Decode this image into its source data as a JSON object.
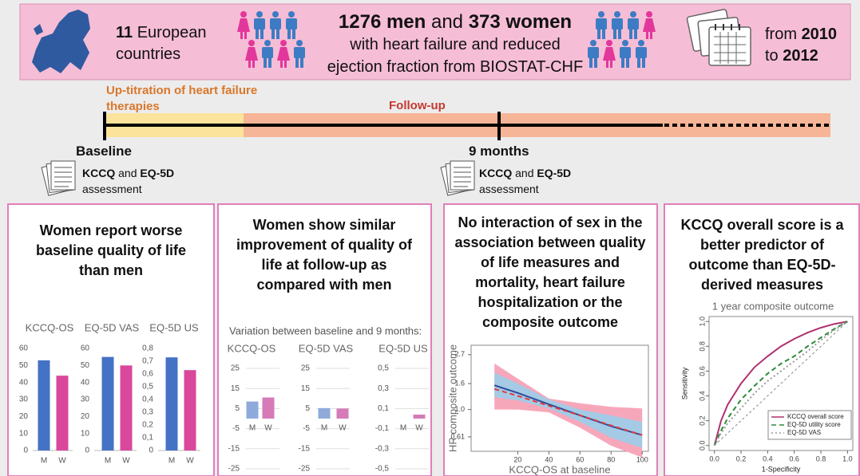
{
  "header": {
    "countries": {
      "number": "11",
      "text": "European countries"
    },
    "population": {
      "men": "1276 men",
      "and": "and",
      "women": "373 women",
      "line2": "with heart failure and reduced",
      "line3": "ejection fraction from BIOSTAT-CHF"
    },
    "period": {
      "from": "from",
      "start": "2010",
      "to": "to",
      "end": "2012"
    }
  },
  "timeline": {
    "phases": [
      "Up-titration of heart failure therapies",
      "Follow-up"
    ],
    "milestones": [
      {
        "label": "Baseline",
        "measures": [
          "KCCQ",
          "and",
          "EQ-5D"
        ],
        "note": "assessment"
      },
      {
        "label": "9 months",
        "measures": [
          "KCCQ",
          "and",
          "EQ-5D"
        ],
        "note": "assessment"
      }
    ]
  },
  "panels": [
    {
      "title": "Women report worse baseline quality of life than men",
      "charts": [
        {
          "type": "bar",
          "title": "KCCQ-OS",
          "categories": [
            "M",
            "W"
          ],
          "values": [
            53,
            44
          ],
          "colors": [
            "#4472c4",
            "#d9489b"
          ],
          "ylim": [
            0,
            60
          ],
          "yticks": [
            0,
            10,
            20,
            30,
            40,
            50,
            60
          ],
          "grid": false
        },
        {
          "type": "bar",
          "title": "EQ-5D VAS",
          "categories": [
            "M",
            "W"
          ],
          "values": [
            55,
            50
          ],
          "colors": [
            "#4472c4",
            "#d9489b"
          ],
          "ylim": [
            0,
            60
          ],
          "yticks": [
            0,
            10,
            20,
            30,
            40,
            50,
            60
          ],
          "grid": false
        },
        {
          "type": "bar",
          "title": "EQ-5D US",
          "categories": [
            "M",
            "W"
          ],
          "values": [
            0.73,
            0.63
          ],
          "colors": [
            "#4472c4",
            "#d9489b"
          ],
          "ylim": [
            0,
            0.8
          ],
          "yticks": [
            0,
            {
              "value": 0.1,
              "label": "0,1"
            },
            {
              "value": 0.2,
              "label": "0,2"
            },
            {
              "value": 0.3,
              "label": "0,3"
            },
            {
              "value": 0.4,
              "label": "0,4"
            },
            {
              "value": 0.5,
              "label": "0,5"
            },
            {
              "value": 0.6,
              "label": "0,6"
            },
            {
              "value": 0.7,
              "label": "0,7"
            },
            {
              "value": 0.8,
              "label": "0,8"
            }
          ],
          "grid": false
        }
      ]
    },
    {
      "title": "Women show similar improvement of quality of life at follow-up as compared with men",
      "subtitle": "Variation between baseline and 9 months:",
      "charts": [
        {
          "type": "bar",
          "title": "KCCQ-OS",
          "categories": [
            "M",
            "W"
          ],
          "values": [
            8.5,
            10.5
          ],
          "colors": [
            "#8eaadb",
            "#d67bb8"
          ],
          "ylim": [
            -25,
            25
          ],
          "yticks": [
            25,
            15,
            5,
            -5,
            -15,
            -25
          ],
          "grid": true
        },
        {
          "type": "bar",
          "title": "EQ-5D VAS",
          "categories": [
            "M",
            "W"
          ],
          "values": [
            5.2,
            5.0
          ],
          "colors": [
            "#8eaadb",
            "#d67bb8"
          ],
          "ylim": [
            -25,
            25
          ],
          "yticks": [
            25,
            15,
            5,
            -5,
            -15,
            -25
          ],
          "grid": true
        },
        {
          "type": "bar",
          "title": "EQ-5D US",
          "categories": [
            "M",
            "W"
          ],
          "values": [
            0,
            0.04
          ],
          "colors": [
            "#8eaadb",
            "#d67bb8"
          ],
          "ylim": [
            -0.5,
            0.5
          ],
          "yticks": [
            {
              "value": 0.5,
              "label": "0,5"
            },
            {
              "value": 0.3,
              "label": "0,3"
            },
            {
              "value": 0.1,
              "label": "0,1"
            },
            {
              "value": -0.1,
              "label": "-0,1"
            },
            {
              "value": -0.3,
              "label": "-0,3"
            },
            {
              "value": -0.5,
              "label": "-0,5"
            }
          ],
          "grid": true
        }
      ]
    },
    {
      "title": "No interaction of sex in the association between quality of life measures and mortality, heart failure hospitalization or the composite outcome",
      "chart": {
        "type": "line",
        "xlabel": "KCCQ-OS at baseline",
        "ylabel": "HR composite outcome",
        "log_y": true,
        "x": [
          5,
          20,
          40,
          60,
          80,
          100
        ],
        "xlim": [
          -10,
          104
        ],
        "ylim": [
          0.47,
          3.2
        ],
        "xticks": [
          20,
          40,
          60,
          80,
          100
        ],
        "yticks": [
          0.61,
          {
            "value": 1,
            "label": "1.0"
          },
          1.6,
          2.7
        ],
        "series": [
          {
            "color": "#2f4b9a",
            "line_style": "solid",
            "band_color": "#8fd3f0",
            "values": [
              1.55,
              1.35,
              1.1,
              0.9,
              0.74,
              0.63
            ],
            "lower": [
              1.25,
              1.18,
              1.02,
              0.8,
              0.6,
              0.5
            ],
            "upper": [
              1.95,
              1.6,
              1.2,
              1.0,
              0.9,
              0.8
            ]
          },
          {
            "color": "#e03a3e",
            "line_style": "dashed",
            "band_color": "#f7a7ba",
            "values": [
              1.45,
              1.28,
              1.07,
              0.9,
              0.75,
              0.63
            ],
            "lower": [
              1.0,
              1.0,
              0.95,
              0.72,
              0.52,
              0.42
            ],
            "upper": [
              2.3,
              1.75,
              1.22,
              1.12,
              1.05,
              1.02
            ]
          }
        ]
      }
    },
    {
      "title": "KCCQ overall score is a better predictor of outcome than EQ-5D-derived measures",
      "chart": {
        "type": "line",
        "title": "1 year composite outcome",
        "xlabel": "1-Specificity",
        "ylabel": "Sensitivity",
        "log_y": false,
        "x": [
          0,
          0.05,
          0.1,
          0.2,
          0.3,
          0.4,
          0.5,
          0.6,
          0.7,
          0.8,
          0.9,
          1
        ],
        "xlim": [
          -0.04,
          1.04
        ],
        "ylim": [
          -0.04,
          1.04
        ],
        "xticks": [
          {
            "value": 0,
            "label": "0.0"
          },
          0.2,
          0.4,
          0.6,
          0.8,
          {
            "value": 1,
            "label": "1.0"
          }
        ],
        "yticks": [
          {
            "value": 0,
            "label": "0.0"
          },
          0.2,
          0.4,
          0.6,
          0.8,
          {
            "value": 1,
            "label": "1.0"
          }
        ],
        "legend": "bottom-right",
        "series": [
          {
            "name": "KCCQ overall score",
            "color": "#b0306e",
            "line_style": "solid",
            "values": [
              0,
              0.2,
              0.33,
              0.5,
              0.63,
              0.72,
              0.8,
              0.86,
              0.91,
              0.95,
              0.98,
              1
            ]
          },
          {
            "name": "EQ-5D utility score",
            "color": "#2e8b3a",
            "line_style": "dashed",
            "values": [
              0,
              0.12,
              0.22,
              0.37,
              0.48,
              0.58,
              0.66,
              0.72,
              0.8,
              0.87,
              0.94,
              1
            ]
          },
          {
            "name": "EQ-5D VAS",
            "color": "#9a9a9a",
            "line_style": "dotted",
            "values": [
              0,
              0.1,
              0.18,
              0.3,
              0.42,
              0.52,
              0.6,
              0.68,
              0.76,
              0.85,
              0.93,
              1
            ]
          }
        ]
      }
    }
  ]
}
